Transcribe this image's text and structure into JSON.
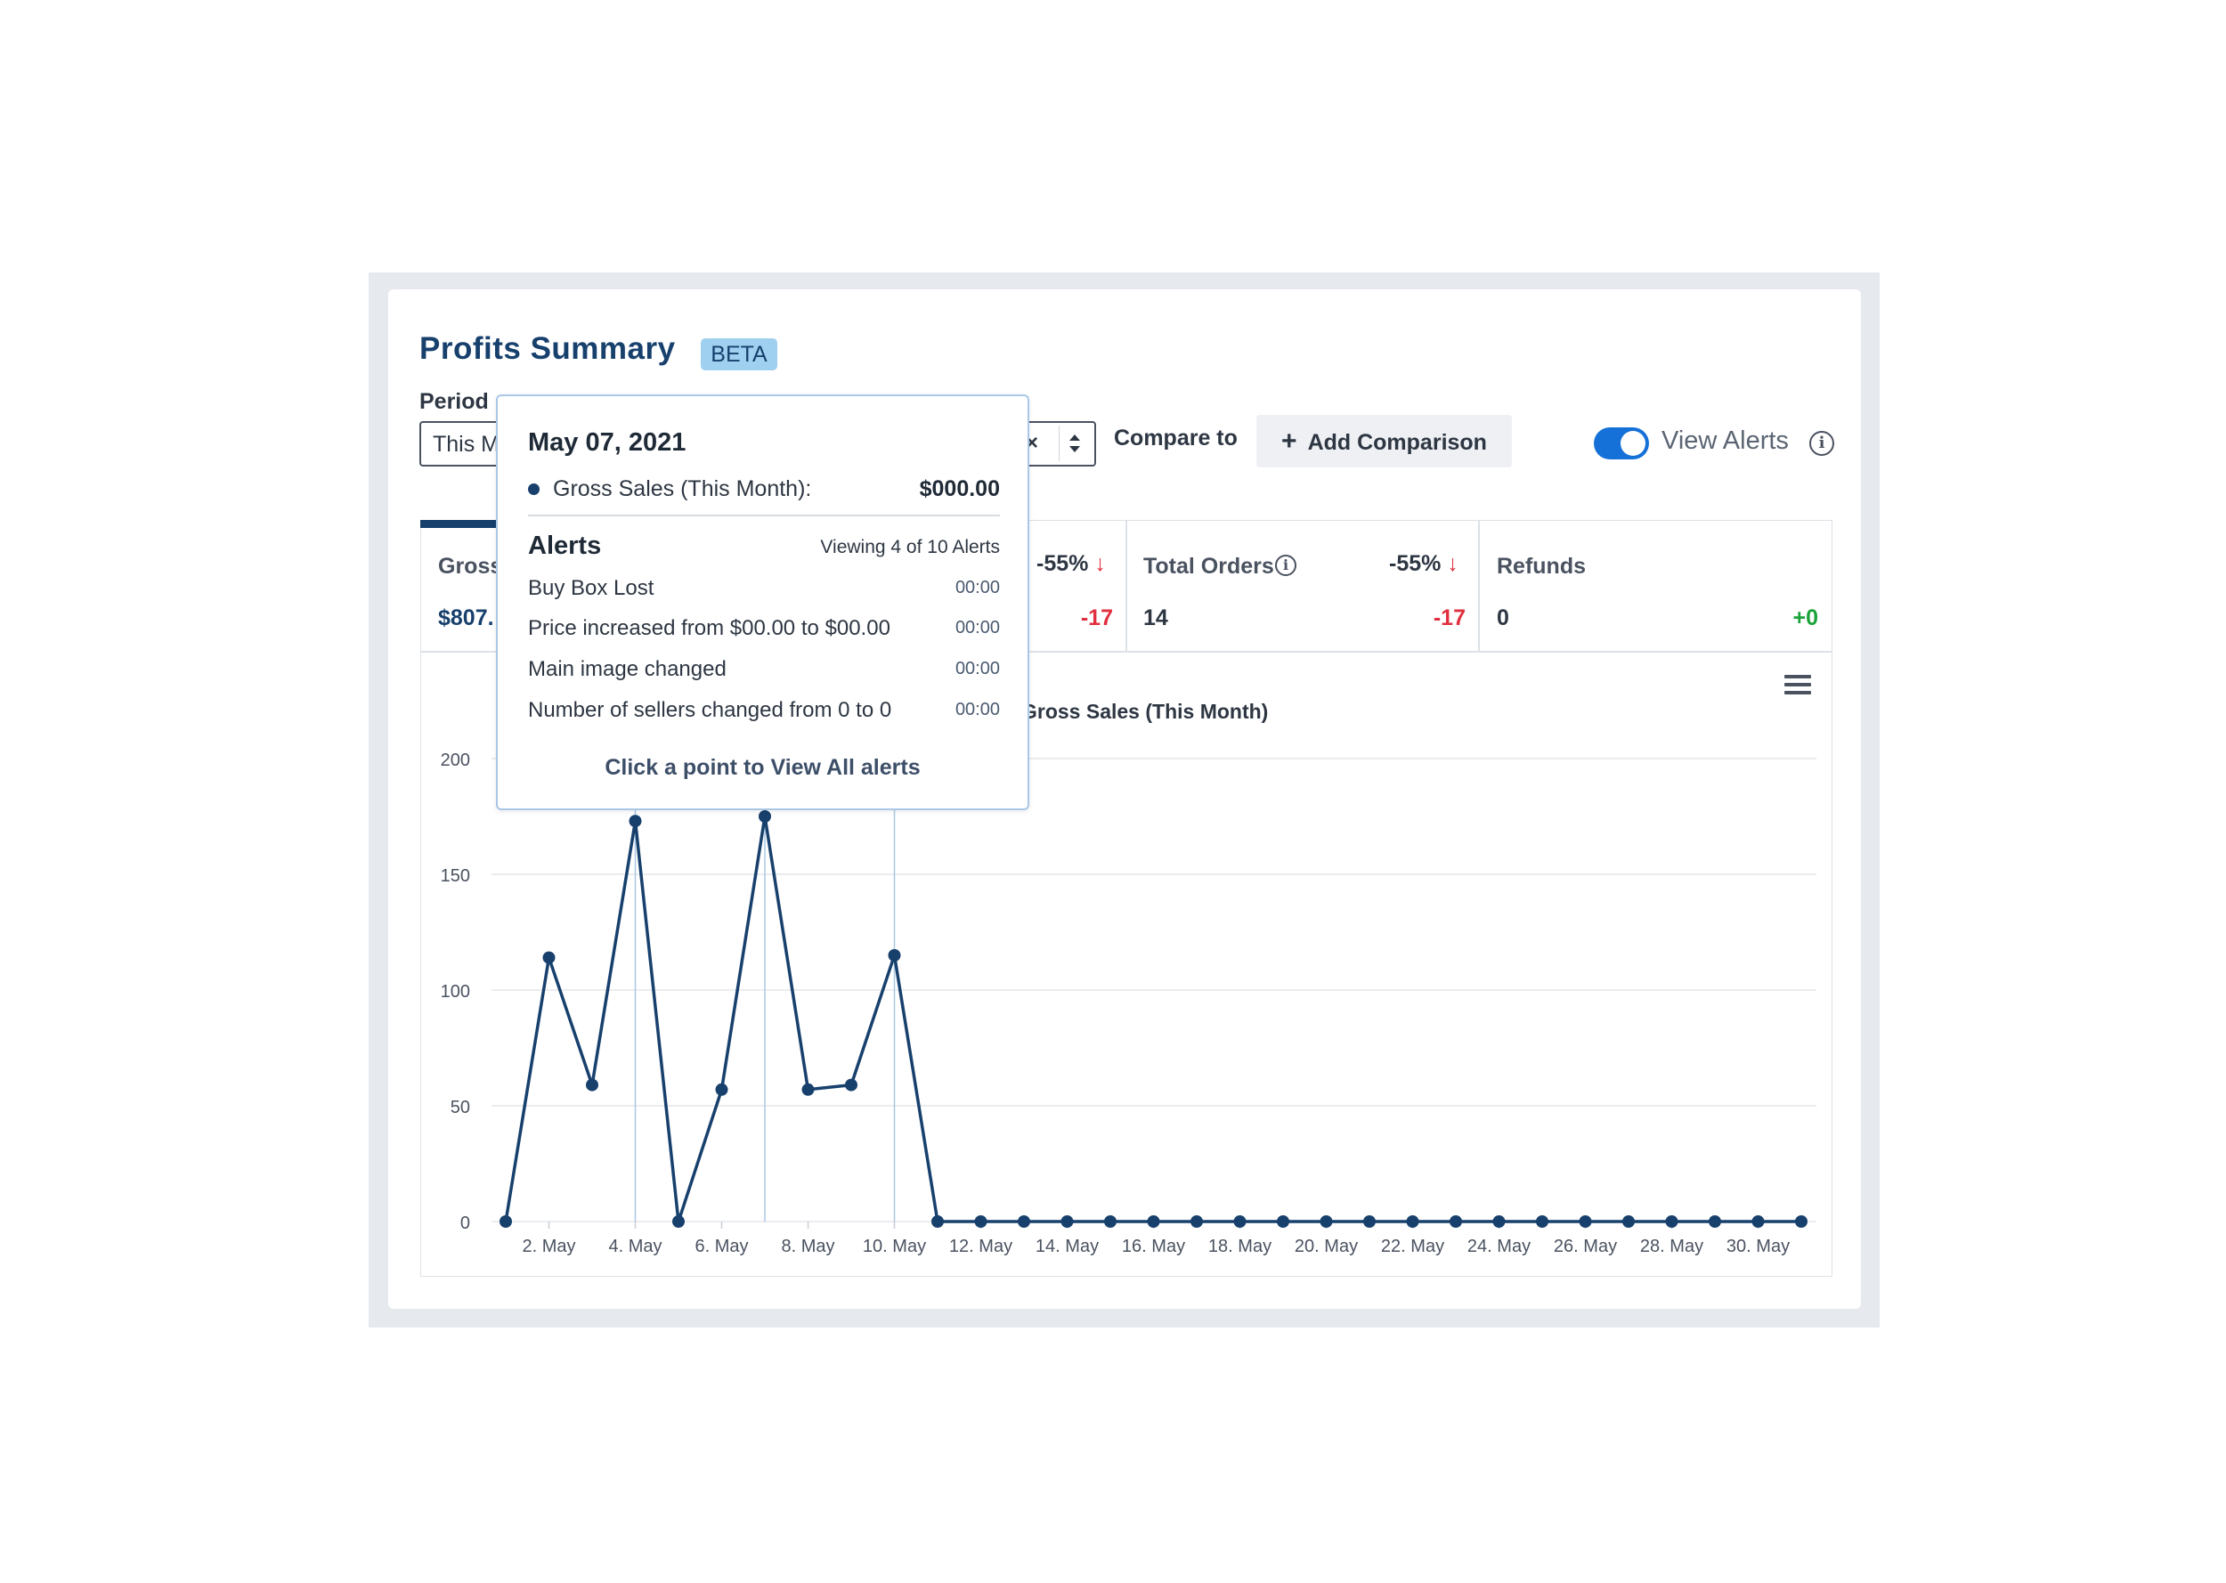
{
  "header": {
    "title": "Profits Summary",
    "badge": "BETA"
  },
  "period": {
    "label": "Period",
    "value": "This M",
    "clear_icon": "close-icon",
    "sort_icon": "sort-icon"
  },
  "compare": {
    "label": "Compare to",
    "button_label": "Add Comparison",
    "button_icon": "plus-icon"
  },
  "alerts_toggle": {
    "label": "View Alerts",
    "on": true,
    "accent": "#1570d8"
  },
  "tabs": [
    {
      "label": "Gross",
      "value": "$807.",
      "active": true
    },
    {
      "label": "",
      "pct": "-55%",
      "delta": "-17"
    },
    {
      "label": "Total Orders",
      "value": "14",
      "pct": "-55%",
      "delta": "-17"
    },
    {
      "label": "Refunds",
      "value": "0",
      "delta": "+0"
    }
  ],
  "tooltip": {
    "date": "May 07, 2021",
    "series_label": "Gross Sales (This Month):",
    "series_value": "$000.00",
    "alerts_title": "Alerts",
    "viewing": "Viewing 4 of 10 Alerts",
    "alerts": [
      {
        "text": "Buy Box Lost",
        "time": "00:00"
      },
      {
        "text": "Price increased from $00.00 to $00.00",
        "time": "00:00"
      },
      {
        "text": "Main image changed",
        "time": "00:00"
      },
      {
        "text": "Number of sellers changed from 0 to 0",
        "time": "00:00"
      }
    ],
    "footer": "Click a point to View All alerts"
  },
  "chart_data": {
    "type": "line",
    "title": "",
    "legend": "Gross Sales (This Month)",
    "series_color": "#17406d",
    "alert_line_color": "#a9c8e6",
    "x": [
      1,
      2,
      3,
      4,
      5,
      6,
      7,
      8,
      9,
      10,
      11,
      12,
      13,
      14,
      15,
      16,
      17,
      18,
      19,
      20,
      21,
      22,
      23,
      24,
      25,
      26,
      27,
      28,
      29,
      30,
      31
    ],
    "x_tick_labels": [
      "2. May",
      "4. May",
      "6. May",
      "8. May",
      "10. May",
      "12. May",
      "14. May",
      "16. May",
      "18. May",
      "20. May",
      "22. May",
      "24. May",
      "26. May",
      "28. May",
      "30. May"
    ],
    "x_ticks": [
      2,
      4,
      6,
      8,
      10,
      12,
      14,
      16,
      18,
      20,
      22,
      24,
      26,
      28,
      30
    ],
    "series": [
      {
        "name": "Gross Sales (This Month)",
        "values": [
          0,
          114,
          59,
          173,
          0,
          57,
          175,
          57,
          59,
          115,
          0,
          0,
          0,
          0,
          0,
          0,
          0,
          0,
          0,
          0,
          0,
          0,
          0,
          0,
          0,
          0,
          0,
          0,
          0,
          0,
          0
        ]
      }
    ],
    "alert_days": [
      4,
      7,
      10
    ],
    "ylim": [
      0,
      200
    ],
    "y_ticks": [
      0,
      50,
      100,
      150,
      200
    ],
    "grid": true
  }
}
